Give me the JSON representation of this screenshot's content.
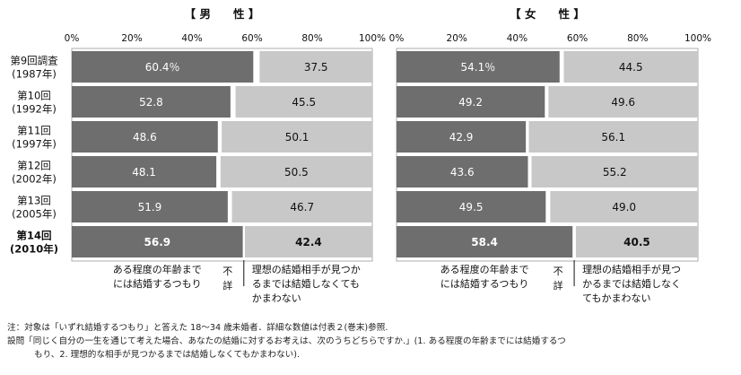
{
  "notes": {
    "note": "注：対象は「いずれ結婚するつもり」と答えた 18～34 歳未婚者．詳細な数値は付表２(巻末)参照.",
    "question_line1": "設問「同じく自分の一生を通じて考えた場合、あなたの結婚に対するお考えは、次のうちどちらですか.」(1. ある程度の年齢までには結婚するつ",
    "question_line2": "もり、2. 理想的な相手が見つかるまでは結婚しなくてもかまわない)."
  },
  "chart_data": {
    "type": "bar",
    "stacked": true,
    "orientation": "horizontal",
    "xlim": [
      0,
      100
    ],
    "x_ticks": [
      "0%",
      "20%",
      "40%",
      "60%",
      "80%",
      "100%"
    ],
    "categories": [
      [
        "第9回調査",
        "(1987年)"
      ],
      [
        "第10回",
        "(1992年)"
      ],
      [
        "第11回",
        "(1997年)"
      ],
      [
        "第12回",
        "(2002年)"
      ],
      [
        "第13回",
        "(2005年)"
      ],
      [
        "第14回",
        "(2010年)"
      ]
    ],
    "highlight_index": 5,
    "colors": {
      "first": "#6e6e6e",
      "second": "#c8c8c8",
      "first_text": "#ffffff",
      "second_text": "#111111"
    },
    "panels": [
      {
        "title": "【 男　　性 】",
        "series": [
          {
            "values": [
              60.4,
              52.8,
              48.6,
              48.1,
              51.9,
              56.9
            ],
            "labels": [
              "60.4％",
              "52.8",
              "48.6",
              "48.1",
              "51.9",
              "56.9"
            ]
          },
          {
            "values": [
              37.5,
              45.5,
              50.1,
              50.5,
              46.7,
              42.4
            ],
            "labels": [
              "37.5",
              "45.5",
              "50.1",
              "50.5",
              "46.7",
              "42.4"
            ]
          }
        ],
        "legend": {
          "first": [
            "ある程度の年齢まで",
            "には結婚するつもり"
          ],
          "middle": [
            "不",
            "詳"
          ],
          "second": [
            "理想の結婚相手が見つか",
            "るまでは結婚しなくても",
            "かまわない"
          ]
        }
      },
      {
        "title": "【 女　　性 】",
        "series": [
          {
            "values": [
              54.1,
              49.2,
              42.9,
              43.6,
              49.5,
              58.4
            ],
            "labels": [
              "54.1％",
              "49.2",
              "42.9",
              "43.6",
              "49.5",
              "58.4"
            ]
          },
          {
            "values": [
              44.5,
              49.6,
              56.1,
              55.2,
              49.0,
              40.5
            ],
            "labels": [
              "44.5",
              "49.6",
              "56.1",
              "55.2",
              "49.0",
              "40.5"
            ]
          }
        ],
        "legend": {
          "first": [
            "ある程度の年齢まで",
            "には結婚するつもり"
          ],
          "middle": [
            "不",
            "詳"
          ],
          "second": [
            "理想の結婚相手が見つ",
            "かるまでは結婚しなく",
            "てもかまわない"
          ]
        }
      }
    ]
  }
}
